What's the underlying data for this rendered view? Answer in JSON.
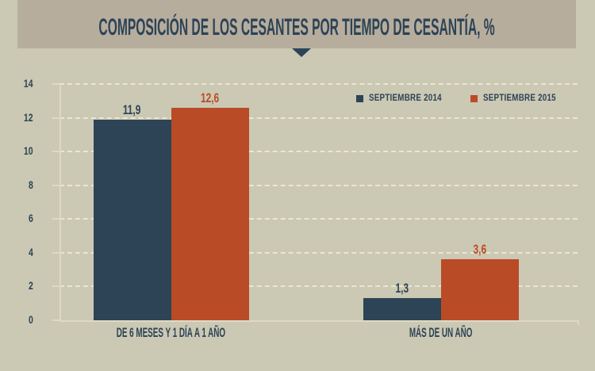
{
  "page": {
    "background": "#cbc8b3"
  },
  "header": {
    "title": "COMPOSICIÓN DE LOS CESANTES POR TIEMPO DE CESANTÍA, %",
    "background": "#b6ad9d",
    "text_color": "#2d4356"
  },
  "icons": {
    "pointer": "triangle-down",
    "pointer_color": "#2d4356"
  },
  "chart_data": {
    "type": "bar",
    "title": "COMPOSICIÓN DE LOS CESANTES POR TIEMPO DE CESANTÍA, %",
    "categories": [
      "DE 6 MESES Y 1 DÍA A 1 AÑO",
      "MÁS DE UN AÑO"
    ],
    "series": [
      {
        "name": "SEPTIEMBRE 2014",
        "color": "#2d4356",
        "values": [
          11.9,
          1.3
        ],
        "value_labels": [
          "11,9",
          "1,3"
        ]
      },
      {
        "name": "SEPTIEMBRE 2015",
        "color": "#ba4b27",
        "values": [
          12.6,
          3.6
        ],
        "value_labels": [
          "12,6",
          "3,6"
        ]
      }
    ],
    "xlabel": "",
    "ylabel": "",
    "ylim": [
      0,
      14
    ],
    "yticks": [
      0,
      2,
      4,
      6,
      8,
      10,
      12,
      14
    ],
    "grid": "horizontal-dashed",
    "gridline_color": "#eae6d2",
    "axis_color": "#ded9c5",
    "legend_position": "top-right",
    "decimal_separator": ","
  }
}
